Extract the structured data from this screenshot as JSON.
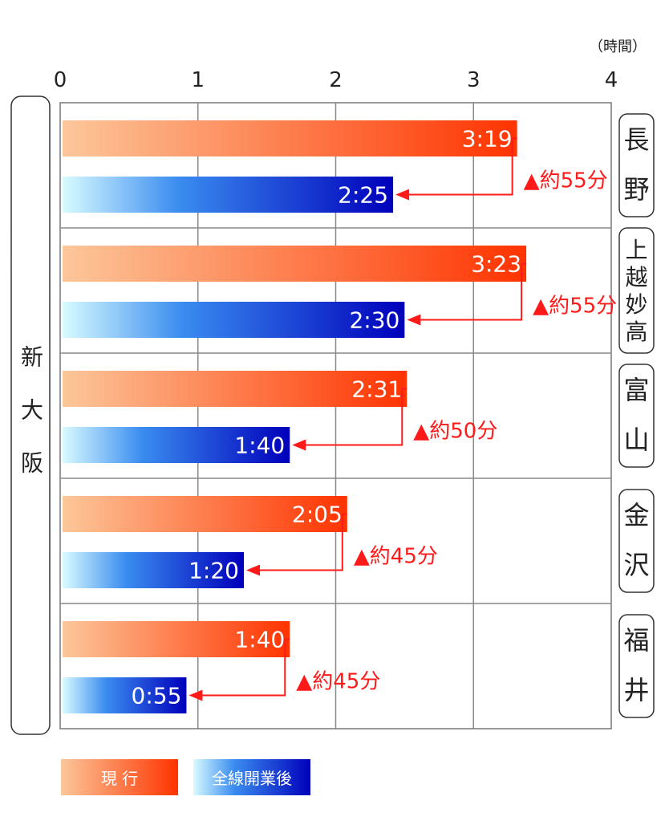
{
  "chart_data": {
    "type": "bar",
    "orientation": "horizontal",
    "title": "",
    "xlabel": "",
    "unit_label": "（時間）",
    "xlim": [
      0,
      4
    ],
    "x_ticks": [
      "0",
      "1",
      "2",
      "3",
      "4"
    ],
    "grid": true,
    "origin_label": "新大阪",
    "categories": [
      "長野",
      "上越妙高",
      "富山",
      "金沢",
      "福井"
    ],
    "series": [
      {
        "name": "現 行",
        "color_start": "#fcc79a",
        "color_end": "#ff3300",
        "values_minutes": [
          199,
          203,
          151,
          125,
          100
        ],
        "labels": [
          "3:19",
          "3:23",
          "2:31",
          "2:05",
          "1:40"
        ]
      },
      {
        "name": "全線開業後",
        "color_start": "#d8fbff",
        "color_end": "#0000bb",
        "values_minutes": [
          145,
          150,
          100,
          80,
          55
        ],
        "labels": [
          "2:25",
          "2:30",
          "1:40",
          "1:20",
          "0:55"
        ]
      }
    ],
    "savings": [
      "▲約55分",
      "▲約55分",
      "▲約50分",
      "▲約45分",
      "▲約45分"
    ],
    "annotation_color": "#ff1a1a",
    "legend_position": "bottom-left"
  }
}
